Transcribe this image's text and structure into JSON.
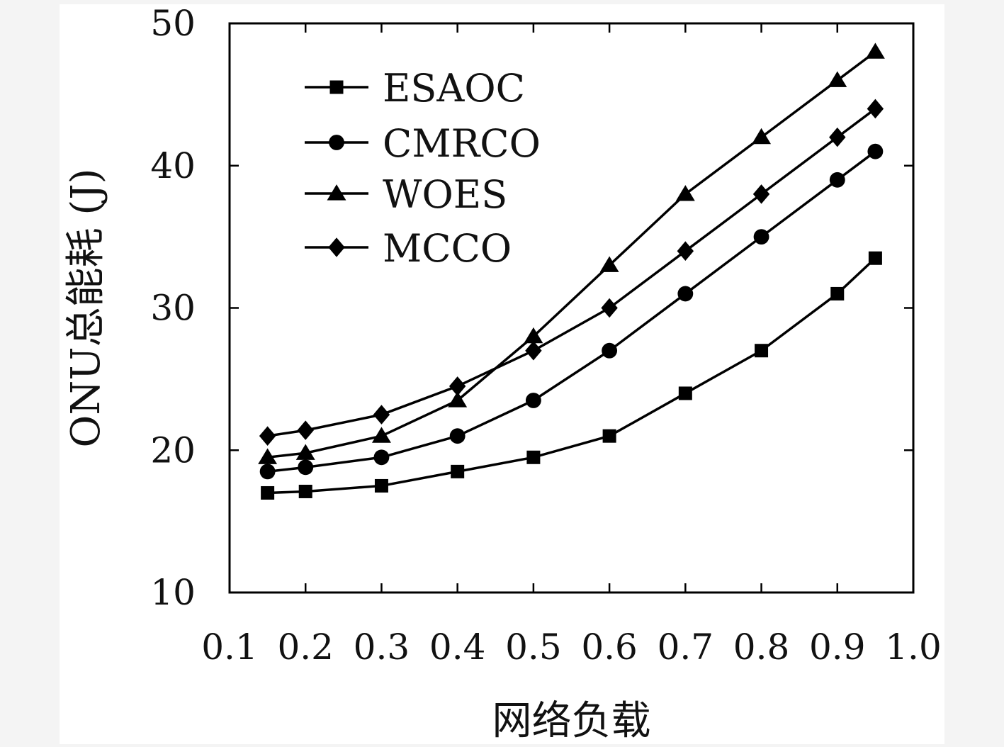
{
  "chart_data": {
    "type": "line",
    "title": "",
    "xlabel": "网络负载",
    "ylabel": "ONU总能耗 (J)",
    "xlim": [
      0.1,
      1.0
    ],
    "ylim": [
      10,
      50
    ],
    "xticks": [
      "0.1",
      "0.2",
      "0.3",
      "0.4",
      "0.5",
      "0.6",
      "0.7",
      "0.8",
      "0.9",
      "1.0"
    ],
    "yticks": [
      "10",
      "20",
      "30",
      "40",
      "50"
    ],
    "grid": false,
    "legend_position": "top-left",
    "x": [
      0.15,
      0.2,
      0.3,
      0.4,
      0.5,
      0.6,
      0.7,
      0.8,
      0.9,
      0.95
    ],
    "series": [
      {
        "name": "ESAOC",
        "marker": "square",
        "values": [
          17.0,
          17.1,
          17.5,
          18.5,
          19.5,
          21.0,
          24.0,
          27.0,
          31.0,
          33.5
        ]
      },
      {
        "name": "CMRCO",
        "marker": "circle",
        "values": [
          18.5,
          18.8,
          19.5,
          21.0,
          23.5,
          27.0,
          31.0,
          35.0,
          39.0,
          41.0
        ]
      },
      {
        "name": "WOES",
        "marker": "triangle",
        "values": [
          19.5,
          19.8,
          21.0,
          23.5,
          28.0,
          33.0,
          38.0,
          42.0,
          46.0,
          48.0
        ]
      },
      {
        "name": "MCCO",
        "marker": "diamond",
        "values": [
          21.0,
          21.4,
          22.5,
          24.5,
          27.0,
          30.0,
          34.0,
          38.0,
          42.0,
          44.0
        ]
      }
    ],
    "line_color": "#000000"
  }
}
